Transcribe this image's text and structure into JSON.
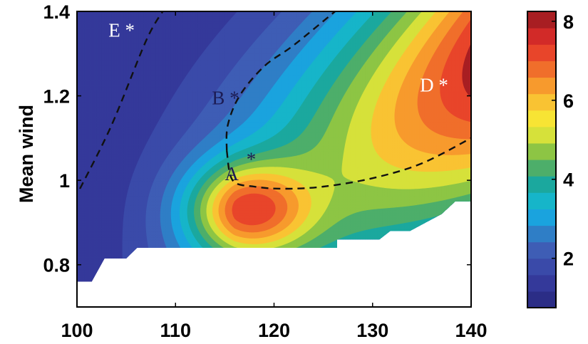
{
  "chart_data": {
    "type": "contour",
    "ylabel": "Mean wind",
    "xlabel": "",
    "title": "",
    "xlim": [
      100,
      140
    ],
    "ylim": [
      0.7,
      1.4
    ],
    "xticks": [
      {
        "value": 100,
        "label": "100"
      },
      {
        "value": 110,
        "label": "110"
      },
      {
        "value": 120,
        "label": "120"
      },
      {
        "value": 130,
        "label": "130"
      },
      {
        "value": 140,
        "label": "140"
      }
    ],
    "yticks": [
      {
        "value": 0.8,
        "label": "0.8"
      },
      {
        "value": 1.0,
        "label": "1"
      },
      {
        "value": 1.2,
        "label": "1.2"
      },
      {
        "value": 1.4,
        "label": "1.4"
      }
    ],
    "colorbar": {
      "min": 0.75,
      "max": 8.25,
      "ticks": [
        {
          "value": 2,
          "label": "2"
        },
        {
          "value": 4,
          "label": "4"
        },
        {
          "value": 6,
          "label": "6"
        },
        {
          "value": 8,
          "label": "8"
        }
      ],
      "level_colors": [
        "#2b2d86",
        "#34399a",
        "#3a4aa9",
        "#3e5db5",
        "#2f7ec6",
        "#1aa3de",
        "#16b5c9",
        "#1ba89e",
        "#4dae6a",
        "#8dc544",
        "#d6e13a",
        "#f7e434",
        "#f9c333",
        "#f79a2d",
        "#f06e2b",
        "#e8452a",
        "#d22a28",
        "#a81e22"
      ]
    },
    "contour_levels": [
      1,
      1.5,
      2,
      2.5,
      3,
      3.5,
      4,
      4.5,
      5,
      5.5,
      6,
      6.5,
      7,
      7.5,
      8
    ],
    "contour_colors": [
      "#34399a",
      "#3a4aa9",
      "#3e5db5",
      "#2f7ec6",
      "#1aa3de",
      "#16b5c9",
      "#1ba89e",
      "#4dae6a",
      "#8dc544",
      "#d6e13a",
      "#f9c333",
      "#f79a2d",
      "#f06e2b",
      "#e8452a",
      "#a81e22"
    ],
    "valid_region_boundary": [
      {
        "x": 100,
        "y": 0.76
      },
      {
        "x": 101.5,
        "y": 0.76
      },
      {
        "x": 102.8,
        "y": 0.815
      },
      {
        "x": 105.0,
        "y": 0.815
      },
      {
        "x": 106.1,
        "y": 0.84
      },
      {
        "x": 126.4,
        "y": 0.84
      },
      {
        "x": 126.4,
        "y": 0.86
      },
      {
        "x": 130.7,
        "y": 0.86
      },
      {
        "x": 131.8,
        "y": 0.88
      },
      {
        "x": 133.8,
        "y": 0.88
      },
      {
        "x": 135.4,
        "y": 0.9
      },
      {
        "x": 137.0,
        "y": 0.92
      },
      {
        "x": 138.4,
        "y": 0.95
      },
      {
        "x": 140,
        "y": 0.95
      }
    ],
    "dashed_lines": [
      [
        {
          "x": 100.3,
          "y": 0.98
        },
        {
          "x": 103.5,
          "y": 1.13
        },
        {
          "x": 107,
          "y": 1.33
        },
        {
          "x": 108.7,
          "y": 1.4
        }
      ],
      [
        {
          "x": 115.2,
          "y": 1.07
        },
        {
          "x": 115.3,
          "y": 1.13
        },
        {
          "x": 116.5,
          "y": 1.2
        },
        {
          "x": 119,
          "y": 1.27
        },
        {
          "x": 122,
          "y": 1.32
        },
        {
          "x": 126.2,
          "y": 1.4
        }
      ],
      [
        {
          "x": 115.2,
          "y": 1.07
        },
        {
          "x": 115.8,
          "y": 1.0
        },
        {
          "x": 118,
          "y": 0.985
        },
        {
          "x": 121,
          "y": 0.98
        },
        {
          "x": 125,
          "y": 0.985
        },
        {
          "x": 130,
          "y": 1.005
        },
        {
          "x": 135,
          "y": 1.04
        },
        {
          "x": 140,
          "y": 1.1
        }
      ]
    ],
    "annotations": [
      {
        "label": "E *",
        "x": 103.2,
        "y": 1.34,
        "color": "#ffffff"
      },
      {
        "label": "B *",
        "x": 113.7,
        "y": 1.18,
        "color": "#1c1c55"
      },
      {
        "label": "A",
        "x": 115.0,
        "y": 1.0,
        "color": "#1c1c55"
      },
      {
        "label": "*",
        "x": 117.2,
        "y": 1.035,
        "color": "#1c1c55"
      },
      {
        "label": "D *",
        "x": 134.8,
        "y": 1.21,
        "color": "#ffffff"
      }
    ]
  }
}
